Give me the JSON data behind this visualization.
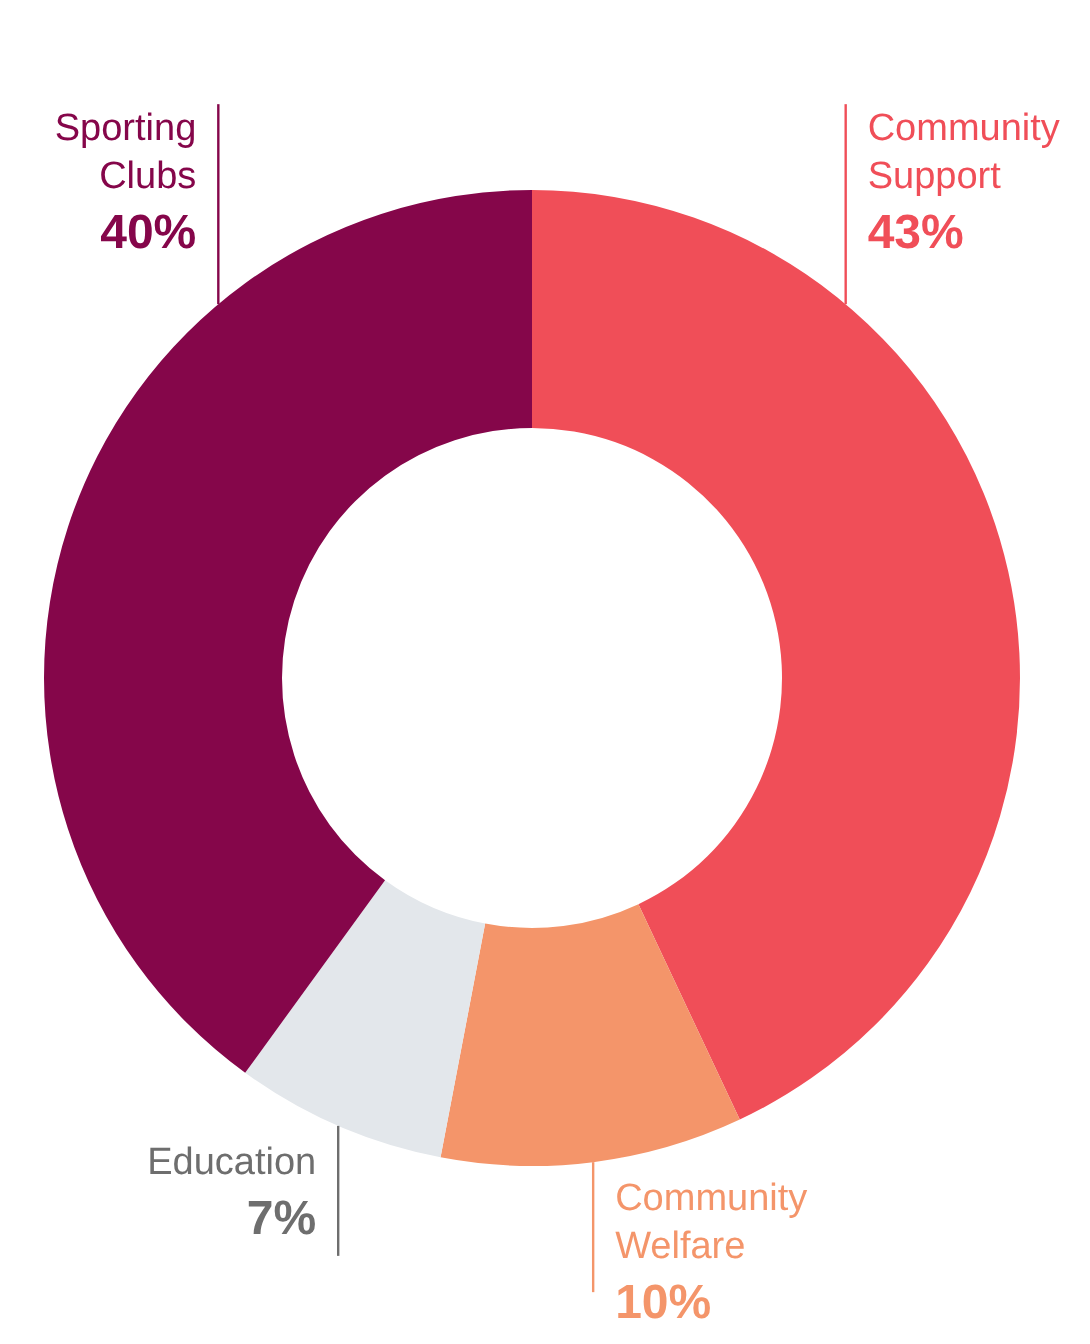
{
  "chart_data": {
    "type": "donut",
    "categories": [
      "Community Support",
      "Community Welfare",
      "Education",
      "Sporting Clubs"
    ],
    "values": [
      43,
      10,
      7,
      40
    ],
    "colors": [
      "#f04e58",
      "#f4956a",
      "#e3e7eb",
      "#85064a"
    ],
    "value_labels": [
      "43%",
      "10%",
      "7%",
      "40%"
    ],
    "legend": false
  }
}
